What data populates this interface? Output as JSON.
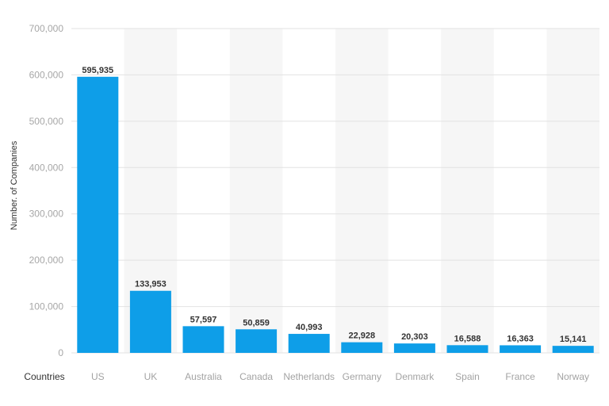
{
  "chart_data": {
    "type": "bar",
    "xlabel": "Countries",
    "ylabel": "Number. of Companies",
    "categories": [
      "US",
      "UK",
      "Australia",
      "Canada",
      "Netherlands",
      "Germany",
      "Denmark",
      "Spain",
      "France",
      "Norway"
    ],
    "values": [
      595935,
      133953,
      57597,
      50859,
      40993,
      22928,
      20303,
      16588,
      16363,
      15141
    ],
    "data_labels": [
      "595,935",
      "133,953",
      "57,597",
      "50,859",
      "40,993",
      "22,928",
      "20,303",
      "16,588",
      "16,363",
      "15,141"
    ],
    "ylim": [
      0,
      700000
    ],
    "yticks": [
      0,
      100000,
      200000,
      300000,
      400000,
      500000,
      600000,
      700000
    ],
    "ytick_labels": [
      "0",
      "100,000",
      "200,000",
      "300,000",
      "400,000",
      "500,000",
      "600,000",
      "700,000"
    ],
    "grid": true,
    "alternating_column_bands": true,
    "colors": {
      "bar": "#0e9ee8",
      "band": "#f6f6f6",
      "grid": "#e2e2e2"
    }
  }
}
